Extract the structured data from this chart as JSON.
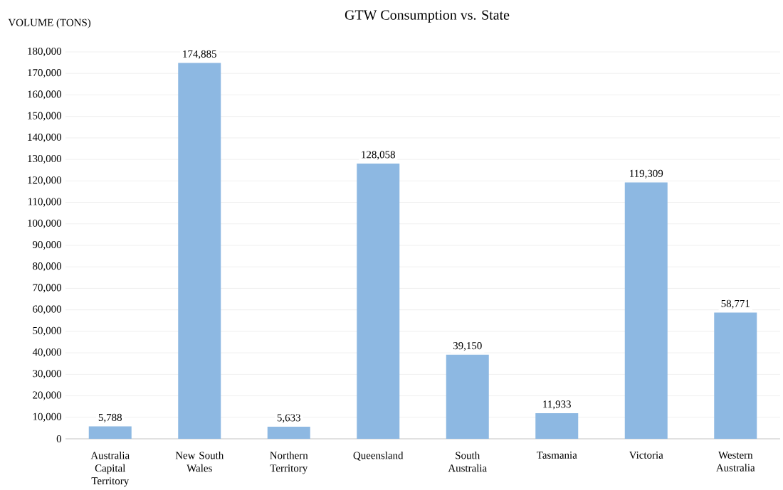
{
  "chart_data": {
    "type": "bar",
    "title": "GTW Consumption vs. State",
    "ylabel": "VOLUME (TONS)",
    "categories": [
      "Australia Capital Territory",
      "New South Wales",
      "Northern Territory",
      "Queensland",
      "South Australia",
      "Tasmania",
      "Victoria",
      "Western Australia"
    ],
    "values": [
      5788,
      174885,
      5633,
      128058,
      39150,
      11933,
      119309,
      58771
    ],
    "value_labels": [
      "5,788",
      "174,885",
      "5,633",
      "128,058",
      "39,150",
      "11,933",
      "119,309",
      "58,771"
    ],
    "color": "#8db8e2",
    "ylim": [
      0,
      180000
    ],
    "yticks": [
      0,
      {
        "value": 10000,
        "label": "10,000"
      },
      {
        "value": 20000,
        "label": "20,000"
      },
      {
        "value": 30000,
        "label": "30,000"
      },
      {
        "value": 40000,
        "label": "40,000"
      },
      {
        "value": 50000,
        "label": "50,000"
      },
      {
        "value": 60000,
        "label": "60,000"
      },
      {
        "value": 70000,
        "label": "70,000"
      },
      {
        "value": 80000,
        "label": "80,000"
      },
      {
        "value": 90000,
        "label": "90,000"
      },
      {
        "value": 100000,
        "label": "100,000"
      },
      {
        "value": 110000,
        "label": "110,000"
      },
      {
        "value": 120000,
        "label": "120,000"
      },
      {
        "value": 130000,
        "label": "130,000"
      },
      {
        "value": 140000,
        "label": "140,000"
      },
      {
        "value": 150000,
        "label": "150,000"
      },
      {
        "value": 160000,
        "label": "160,000"
      },
      {
        "value": 170000,
        "label": "170,000"
      },
      {
        "value": 180000,
        "label": "180,000"
      }
    ],
    "grid": "y"
  }
}
